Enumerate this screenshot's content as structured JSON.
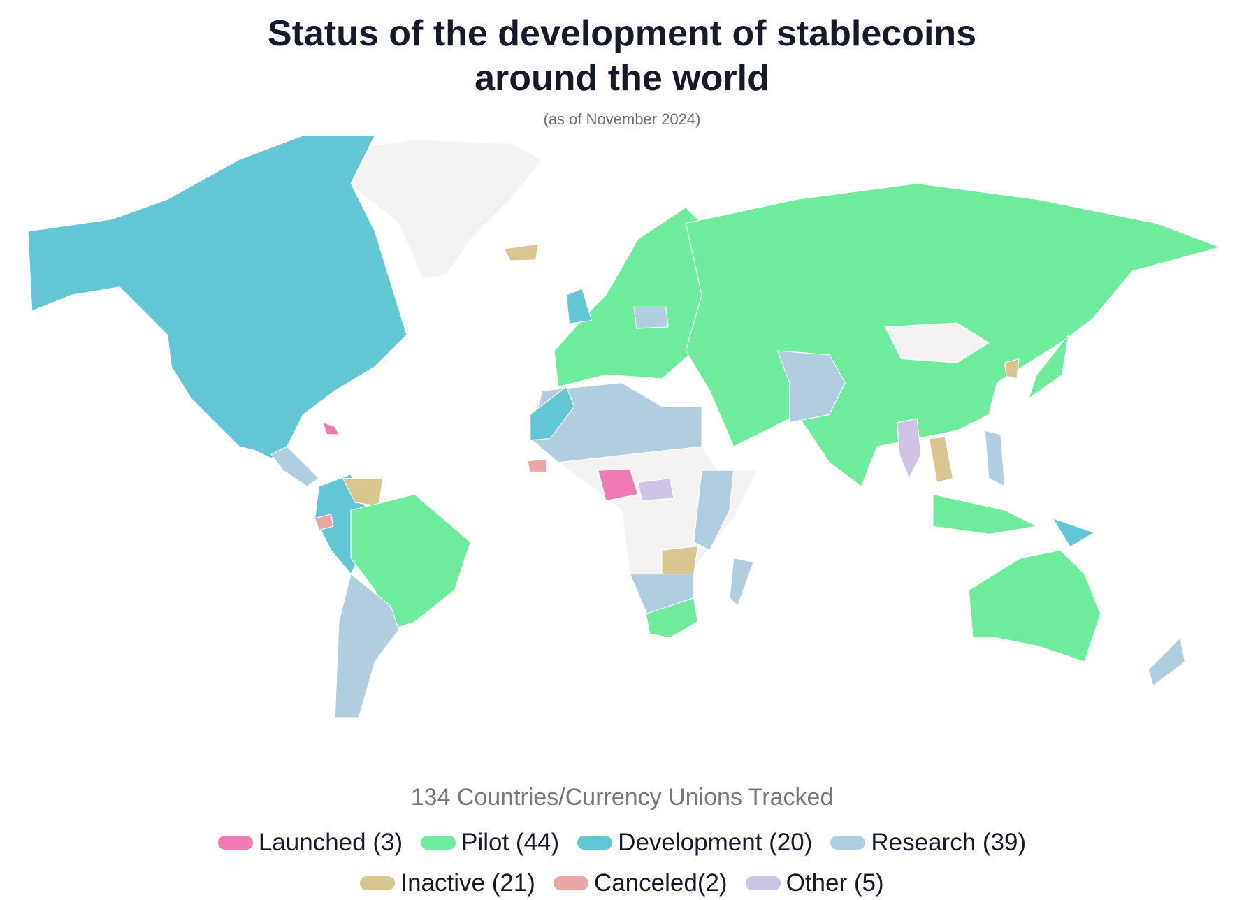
{
  "header": {
    "title_lines": [
      "Status of the development of stablecoins",
      "around the world"
    ],
    "subtitle": "(as of November 2024)"
  },
  "footer": {
    "summary": "134 Countries/Currency Unions Tracked"
  },
  "legend": [
    {
      "label": "Launched (3)",
      "color": "#ee7bb2"
    },
    {
      "label": "Pilot (44)",
      "color": "#6eeb9c"
    },
    {
      "label": "Development (20)",
      "color": "#63c6d4"
    },
    {
      "label": "Research (39)",
      "color": "#b1cde0"
    },
    {
      "label": "Inactive (21)",
      "color": "#d9c590"
    },
    {
      "label": "Canceled(2)",
      "color": "#e8a6a6"
    },
    {
      "label": "Other (5)",
      "color": "#cfc3e6"
    }
  ]
}
